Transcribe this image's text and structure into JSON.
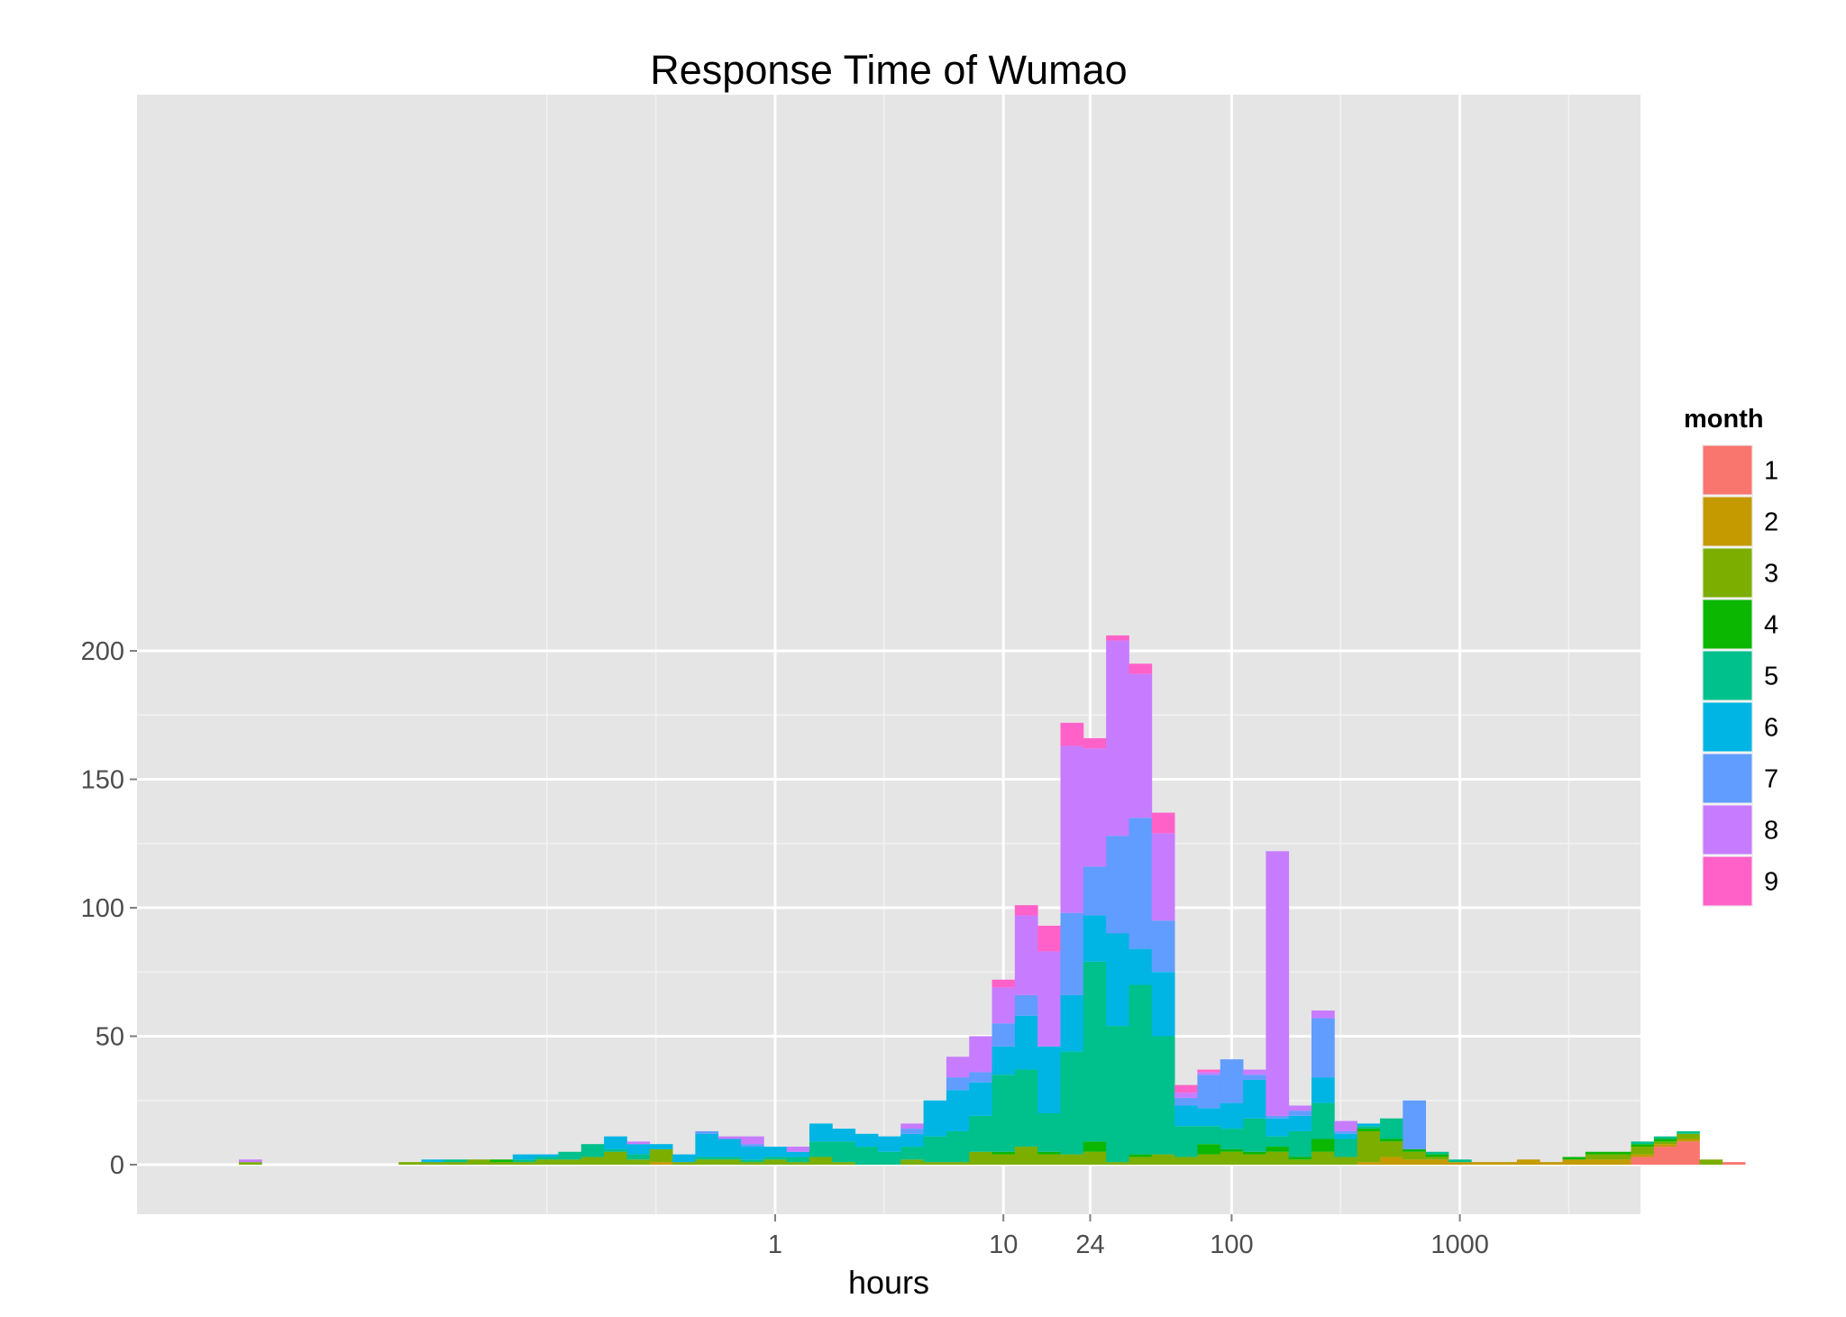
{
  "chart_data": {
    "type": "bar",
    "stacked": true,
    "title": "Response Time of Wumao",
    "xlabel": "hours",
    "ylabel": "",
    "x_scale": "log10",
    "x_axis_range_hours": [
      0.0015,
      6000
    ],
    "ylim": [
      -10,
      210
    ],
    "y_ticks": [
      0,
      50,
      100,
      150,
      200
    ],
    "x_tick_values": [
      1,
      10,
      24,
      100,
      1000
    ],
    "x_tick_labels": [
      "1",
      "10",
      "24",
      "100",
      "1000"
    ],
    "x_minor_gridlines": [
      0.1,
      0.3,
      3,
      300,
      3000
    ],
    "bins_log10_hours": {
      "start": -2.35,
      "width": 0.1
    },
    "legend": {
      "title": "month",
      "placement": "right",
      "entries": [
        "1",
        "2",
        "3",
        "4",
        "5",
        "6",
        "7",
        "8",
        "9"
      ]
    },
    "colors": {
      "1": "#F8766D",
      "2": "#C49A00",
      "3": "#7CAE00",
      "4": "#0CB702",
      "5": "#00C08B",
      "6": "#00B5E4",
      "7": "#619CFF",
      "8": "#C77CFF",
      "9": "#FF61C9"
    },
    "series": [
      {
        "name": "1",
        "values": [
          0,
          0,
          0,
          0,
          0,
          0,
          0,
          0,
          0,
          0,
          0,
          0,
          0,
          0,
          0,
          0,
          0,
          0,
          0,
          0,
          0,
          0,
          0,
          0,
          0,
          0,
          0,
          0,
          0,
          0,
          0,
          0,
          0,
          0,
          0,
          0,
          0,
          0,
          0,
          0,
          0,
          0,
          0,
          0,
          0,
          0,
          0,
          0,
          0,
          0,
          0,
          0,
          0,
          0,
          0,
          0,
          0,
          0,
          0,
          0,
          0,
          3,
          7,
          9,
          0,
          1
        ]
      },
      {
        "name": "2",
        "values": [
          0,
          0,
          0,
          0,
          0,
          0,
          0,
          0,
          0,
          0,
          0,
          0,
          0,
          0,
          0,
          0,
          0,
          0,
          1,
          0,
          0,
          0,
          0,
          0,
          0,
          0,
          0,
          0,
          0,
          0,
          0,
          0,
          0,
          0,
          0,
          0,
          0,
          0,
          0,
          0,
          0,
          0,
          0,
          0,
          0,
          0,
          0,
          0,
          0,
          1,
          3,
          2,
          2,
          1,
          1,
          1,
          2,
          1,
          2,
          2,
          2,
          1,
          1,
          1,
          0,
          0
        ]
      },
      {
        "name": "3",
        "values": [
          1,
          0,
          0,
          0,
          0,
          0,
          0,
          1,
          1,
          1,
          2,
          1,
          1,
          2,
          2,
          3,
          5,
          2,
          5,
          1,
          2,
          2,
          1,
          2,
          1,
          3,
          1,
          0,
          0,
          2,
          1,
          1,
          5,
          4,
          7,
          4,
          4,
          5,
          1,
          3,
          4,
          3,
          4,
          5,
          4,
          5,
          2,
          5,
          3,
          12,
          6,
          3,
          1,
          0,
          0,
          0,
          0,
          0,
          0,
          2,
          2,
          3,
          1,
          2,
          2,
          0
        ]
      },
      {
        "name": "4",
        "values": [
          0,
          0,
          0,
          0,
          0,
          0,
          0,
          0,
          0,
          0,
          0,
          1,
          0,
          0,
          0,
          0,
          0,
          0,
          0,
          0,
          0,
          0,
          0,
          0,
          0,
          0,
          0,
          0,
          0,
          0,
          0,
          0,
          0,
          1,
          0,
          1,
          0,
          4,
          0,
          1,
          0,
          0,
          4,
          1,
          1,
          2,
          1,
          5,
          0,
          1,
          1,
          1,
          1,
          0,
          0,
          0,
          0,
          0,
          1,
          1,
          1,
          1,
          1,
          0,
          0,
          0
        ]
      },
      {
        "name": "5",
        "values": [
          0,
          0,
          0,
          0,
          0,
          0,
          0,
          0,
          0,
          1,
          0,
          0,
          1,
          1,
          3,
          5,
          1,
          2,
          0,
          0,
          1,
          1,
          1,
          1,
          2,
          6,
          8,
          7,
          5,
          5,
          10,
          12,
          14,
          30,
          30,
          15,
          40,
          70,
          53,
          66,
          46,
          12,
          7,
          8,
          13,
          4,
          10,
          14,
          7,
          1,
          8,
          0,
          1,
          1,
          0,
          0,
          0,
          0,
          0,
          0,
          0,
          1,
          1,
          1,
          0,
          0
        ]
      },
      {
        "name": "6",
        "values": [
          0,
          0,
          0,
          0,
          0,
          0,
          0,
          0,
          1,
          0,
          0,
          0,
          2,
          1,
          0,
          0,
          5,
          4,
          2,
          3,
          9,
          7,
          5,
          4,
          2,
          7,
          5,
          5,
          6,
          5,
          14,
          16,
          13,
          11,
          21,
          26,
          22,
          18,
          36,
          14,
          25,
          8,
          7,
          10,
          15,
          7,
          6,
          10,
          2,
          1,
          0,
          0,
          0,
          0,
          0,
          0,
          0,
          0,
          0,
          0,
          0,
          0,
          0,
          0,
          0,
          0
        ]
      },
      {
        "name": "7",
        "values": [
          0,
          0,
          0,
          0,
          0,
          0,
          0,
          0,
          0,
          0,
          0,
          0,
          0,
          0,
          0,
          0,
          0,
          0,
          0,
          0,
          1,
          0,
          1,
          0,
          0,
          0,
          0,
          0,
          0,
          2,
          0,
          5,
          4,
          9,
          8,
          0,
          32,
          19,
          38,
          51,
          20,
          3,
          13,
          17,
          2,
          1,
          2,
          23,
          1,
          0,
          0,
          19,
          0,
          0,
          0,
          0,
          0,
          0,
          0,
          0,
          0,
          0,
          0,
          0,
          0,
          0
        ]
      },
      {
        "name": "8",
        "values": [
          1,
          0,
          0,
          0,
          0,
          0,
          0,
          0,
          0,
          0,
          0,
          0,
          0,
          0,
          0,
          0,
          0,
          1,
          0,
          0,
          0,
          1,
          3,
          0,
          2,
          0,
          0,
          0,
          0,
          2,
          0,
          8,
          14,
          14,
          31,
          37,
          65,
          46,
          76,
          56,
          34,
          2,
          1,
          0,
          2,
          103,
          2,
          3,
          4,
          0,
          0,
          0,
          0,
          0,
          0,
          0,
          0,
          0,
          0,
          0,
          0,
          0,
          0,
          0,
          0,
          0
        ]
      },
      {
        "name": "9",
        "values": [
          0,
          0,
          0,
          0,
          0,
          0,
          0,
          0,
          0,
          0,
          0,
          0,
          0,
          0,
          0,
          0,
          0,
          0,
          0,
          0,
          0,
          0,
          0,
          0,
          0,
          0,
          0,
          0,
          0,
          0,
          0,
          0,
          0,
          3,
          4,
          10,
          9,
          4,
          2,
          4,
          8,
          3,
          1,
          0,
          0,
          0,
          0,
          0,
          0,
          0,
          0,
          0,
          0,
          0,
          0,
          0,
          0,
          0,
          0,
          0,
          0,
          0,
          0,
          0,
          0,
          0
        ]
      }
    ]
  }
}
